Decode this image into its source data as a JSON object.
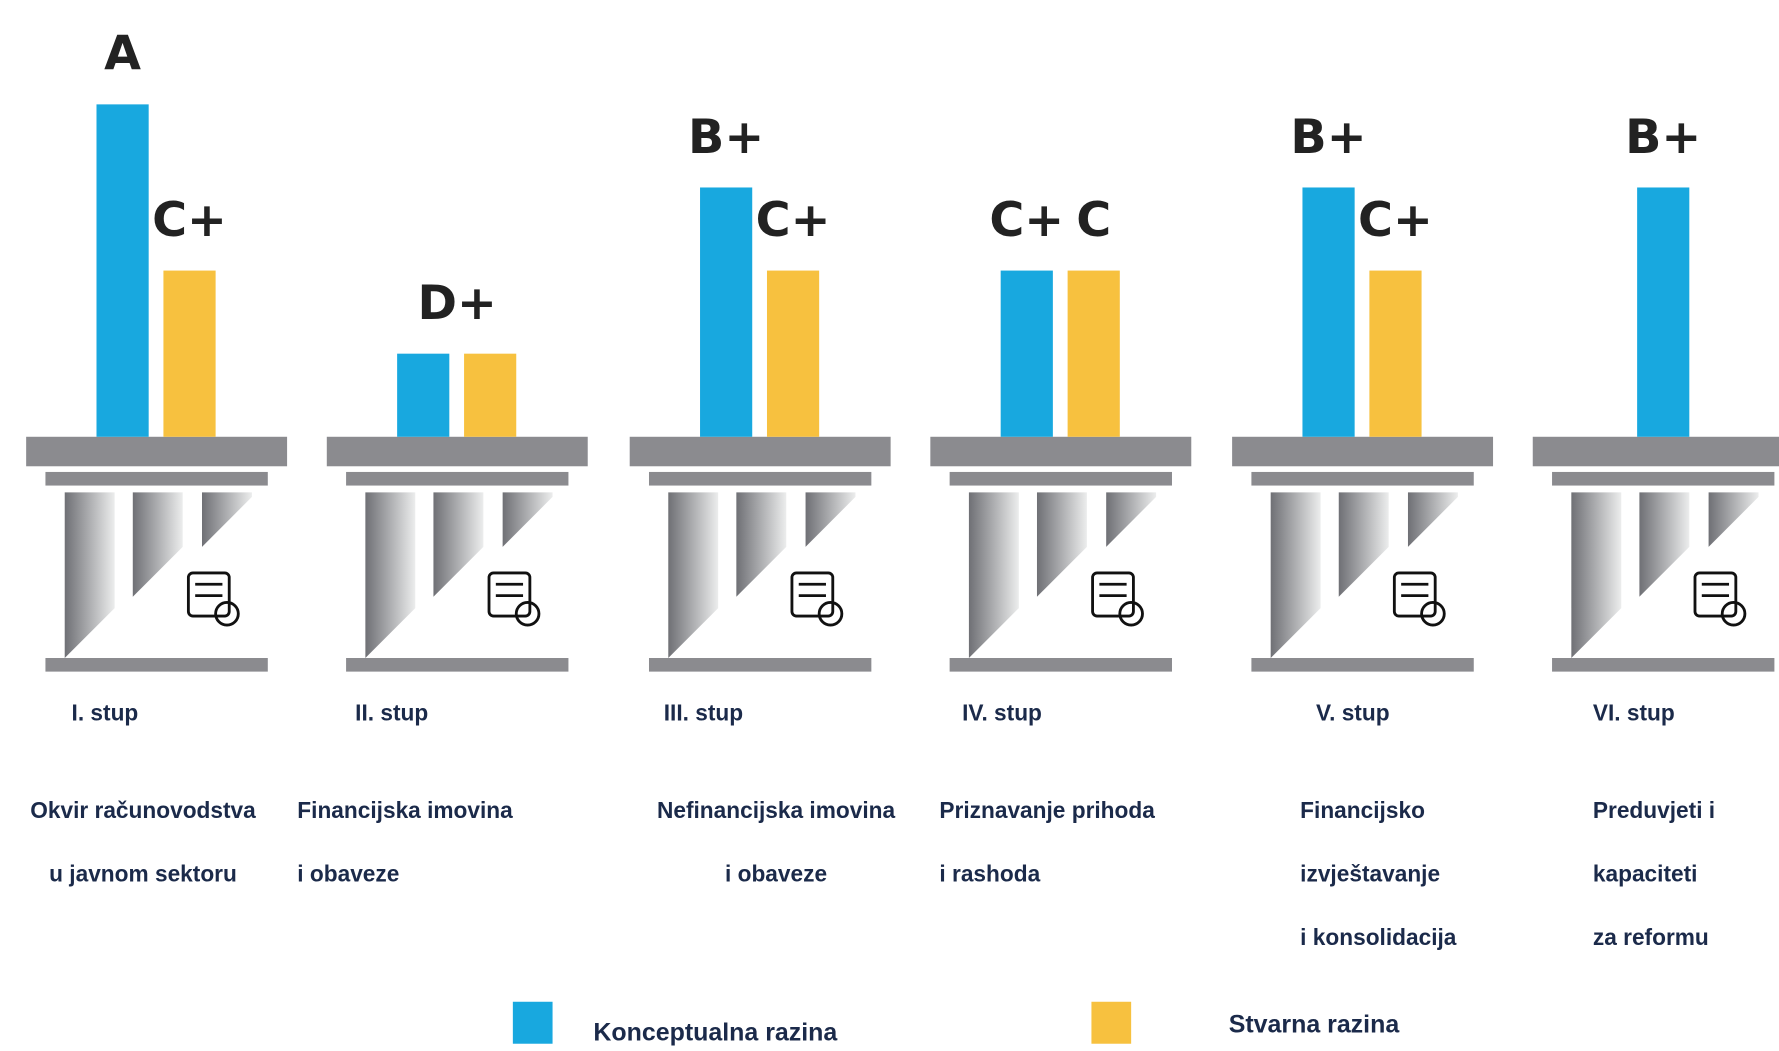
{
  "chart_data": {
    "type": "bar",
    "categories": [
      "I. stup",
      "II. stup",
      "III. stup",
      "IV. stup",
      "V. stup",
      "VI. stup"
    ],
    "descriptions": [
      [
        "Okvir računovodstva",
        "u javnom sektoru"
      ],
      [
        "Financijska imovina",
        "i obaveze"
      ],
      [
        "Nefinancijska imovina",
        "i obaveze"
      ],
      [
        "Priznavanje prihoda",
        "i rashoda"
      ],
      [
        "Financijsko",
        "izvještavanje",
        "i konsolidacija"
      ],
      [
        "Preduvjeti i",
        "kapaciteti",
        "za reformu"
      ]
    ],
    "series": [
      {
        "name": "Konceptualna razina",
        "color": "#18a8df",
        "values": [
          4,
          1,
          3,
          2,
          3,
          3
        ],
        "value_labels": [
          "A",
          "D+",
          "B+",
          "C+",
          "B+",
          "B+"
        ]
      },
      {
        "name": "Stvarna razina",
        "color": "#f7c13f",
        "values": [
          2,
          1,
          2,
          2,
          2,
          null
        ],
        "value_labels": [
          "C+",
          null,
          "C+",
          "C",
          "C+",
          null
        ]
      }
    ],
    "ylim": [
      0,
      4
    ]
  }
}
